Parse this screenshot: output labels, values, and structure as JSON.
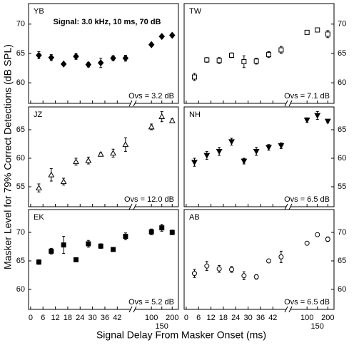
{
  "figure": {
    "x_label": "Signal Delay From Masker Onset (ms)",
    "y_label": "Masker Level for 79% Correct Detections (dB SPL)",
    "x_segments": [
      [
        -1,
        49.5
      ],
      [
        10,
        230
      ]
    ],
    "xticks": [
      0,
      6,
      12,
      18,
      24,
      30,
      36,
      42,
      100,
      150,
      200
    ]
  },
  "chart_data": [
    {
      "type": "scatter",
      "title": "YB",
      "subtitle": "Signal: 3.0 kHz, 10 ms, 70 dB",
      "annotation": "Ovs = 3.2 dB",
      "marker": "diamond",
      "filled": true,
      "x": [
        4,
        10,
        16,
        22,
        28,
        34,
        40,
        46,
        100,
        150,
        200
      ],
      "values": [
        64.7,
        64.3,
        63.2,
        64.5,
        63.1,
        63.4,
        64.2,
        64.2,
        66.5,
        67.9,
        68.1
      ],
      "errors": [
        0.6,
        0.5,
        0.3,
        0.5,
        0.4,
        0.8,
        0.4,
        0.5,
        0.3,
        0.2,
        0.3
      ],
      "ylim": [
        56.5,
        73.5
      ],
      "yticks": [
        60,
        65,
        70
      ]
    },
    {
      "type": "scatter",
      "title": "TW",
      "annotation": "Ovs = 7.1 dB",
      "marker": "square",
      "filled": false,
      "x": [
        4,
        10,
        16,
        22,
        28,
        34,
        40,
        46,
        100,
        150,
        200
      ],
      "values": [
        61.0,
        63.9,
        63.8,
        64.7,
        63.6,
        63.7,
        64.8,
        65.6,
        68.6,
        69.0,
        68.3
      ],
      "errors": [
        0.6,
        0.4,
        0.5,
        0.4,
        1.0,
        0.5,
        0.5,
        0.6,
        0.2,
        0.2,
        0.6
      ],
      "ylim": [
        56.5,
        73.5
      ],
      "yticks": [
        60,
        65,
        70
      ]
    },
    {
      "type": "scatter",
      "title": "JZ",
      "annotation": "Ovs = 12.0 dB",
      "marker": "triangle-up",
      "filled": false,
      "x": [
        4,
        10,
        16,
        22,
        28,
        34,
        40,
        46,
        100,
        150,
        200
      ],
      "values": [
        54.8,
        57.1,
        55.9,
        59.4,
        59.6,
        60.7,
        60.9,
        62.4,
        65.5,
        67.3,
        66.6
      ],
      "errors": [
        0.7,
        1.1,
        0.6,
        0.6,
        0.6,
        0.3,
        0.7,
        1.2,
        0.5,
        0.9,
        0.3
      ],
      "ylim": [
        51.5,
        69
      ],
      "yticks": [
        55,
        60,
        65
      ]
    },
    {
      "type": "scatter",
      "title": "NH",
      "annotation": "Ovs = 6.5 dB",
      "marker": "triangle-down",
      "filled": true,
      "x": [
        4,
        10,
        16,
        22,
        28,
        34,
        40,
        46,
        100,
        150,
        200
      ],
      "values": [
        59.3,
        60.5,
        61.2,
        62.9,
        59.5,
        61.2,
        61.9,
        62.2,
        66.7,
        67.5,
        66.5
      ],
      "errors": [
        0.7,
        0.7,
        0.7,
        0.6,
        0.5,
        0.7,
        0.5,
        0.5,
        0.4,
        0.7,
        0.3
      ],
      "ylim": [
        51.5,
        69
      ],
      "yticks": [
        55,
        60,
        65
      ]
    },
    {
      "type": "scatter",
      "title": "EK",
      "annotation": "Ovs = 5.2 dB",
      "marker": "square",
      "filled": true,
      "x": [
        4,
        10,
        16,
        22,
        28,
        34,
        40,
        46,
        100,
        150,
        200
      ],
      "values": [
        64.8,
        66.7,
        67.8,
        65.2,
        68.0,
        67.6,
        67.0,
        69.3,
        70.1,
        70.8,
        70.0
      ],
      "errors": [
        0.4,
        0.5,
        1.5,
        0.2,
        0.6,
        0.4,
        0.2,
        0.6,
        0.5,
        0.6,
        0.4
      ],
      "ylim": [
        56.5,
        74
      ],
      "yticks": [
        60,
        65,
        70
      ]
    },
    {
      "type": "scatter",
      "title": "AB",
      "annotation": "Ovs = 6.5 dB",
      "marker": "circle",
      "filled": false,
      "x": [
        4,
        10,
        16,
        22,
        28,
        34,
        40,
        46,
        100,
        150,
        200
      ],
      "values": [
        62.8,
        64.1,
        63.6,
        63.5,
        62.4,
        62.2,
        65.0,
        65.7,
        68.1,
        69.6,
        68.8
      ],
      "errors": [
        0.7,
        0.8,
        0.6,
        0.5,
        0.7,
        0.4,
        0.2,
        1.0,
        0.3,
        0.3,
        0.4
      ],
      "ylim": [
        56.5,
        74
      ],
      "yticks": [
        60,
        65,
        70
      ]
    }
  ]
}
